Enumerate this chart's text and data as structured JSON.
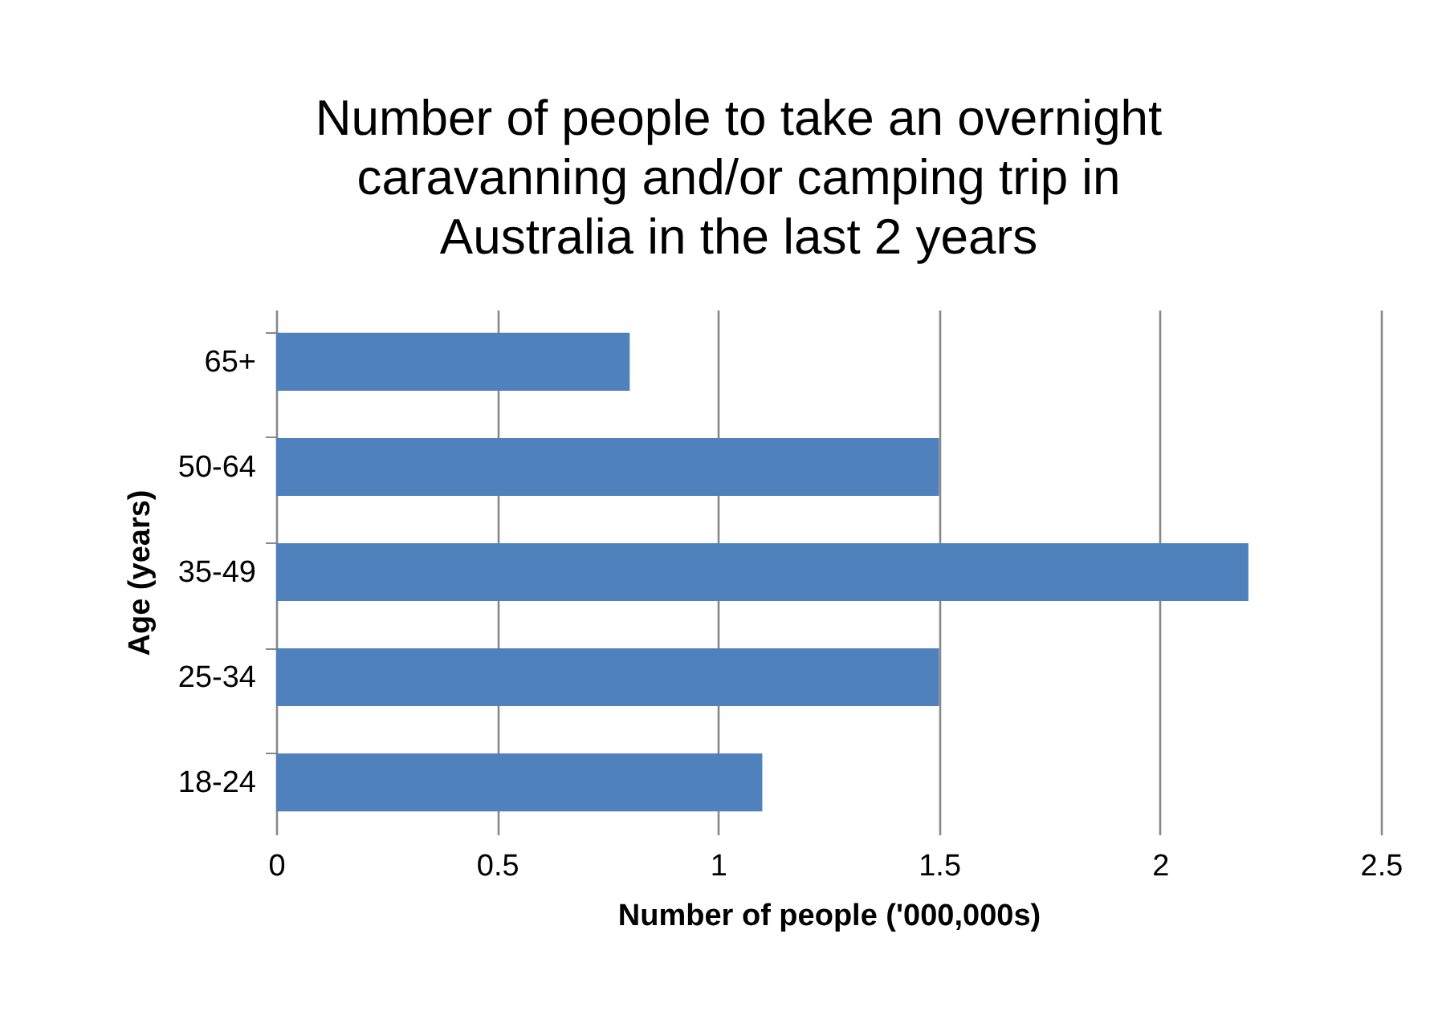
{
  "chart_data": {
    "type": "bar",
    "orientation": "horizontal",
    "title": "Number of people to take an overnight caravanning and/or camping trip in Australia in the last 2 years",
    "xlabel": "Number of people ('000,000s)",
    "ylabel": "Age (years)",
    "categories": [
      "65+",
      "50-64",
      "35-49",
      "25-34",
      "18-24"
    ],
    "values": [
      0.8,
      1.5,
      2.2,
      1.5,
      1.1
    ],
    "color": "#4f81bd",
    "xlim": [
      0,
      2.5
    ],
    "xticks": [
      0,
      0.5,
      1,
      1.5,
      2,
      2.5
    ],
    "grid": "x"
  }
}
